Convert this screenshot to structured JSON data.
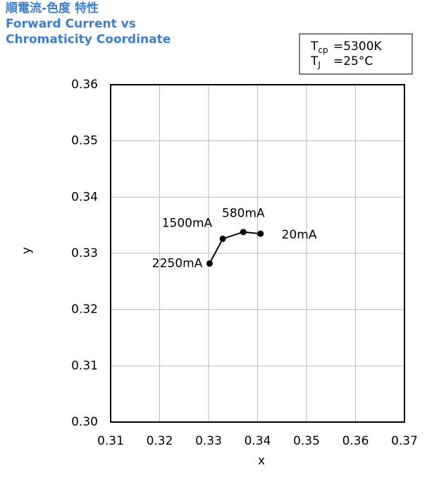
{
  "chart_data": {
    "type": "line",
    "title": [
      "順電流-色度 特性",
      "Forward Current vs",
      "Chromaticity Coordinate"
    ],
    "conditions": [
      {
        "symbol": "T",
        "sub": "cp",
        "text": "=5300K"
      },
      {
        "symbol": "T",
        "sub": "J",
        "text": "=25°C"
      }
    ],
    "x_label": "x",
    "y_label": "y",
    "x": [
      0.3302,
      0.3329,
      0.3371,
      0.3406
    ],
    "values": [
      0.3282,
      0.3326,
      0.3338,
      0.3335
    ],
    "point_labels": [
      "2250mA",
      "1500mA",
      "580mA",
      "20mA"
    ],
    "color": "#000000",
    "xlim": [
      0.31,
      0.37
    ],
    "xticks": [
      0.31,
      0.32,
      0.33,
      0.34,
      0.35,
      0.36,
      0.37
    ],
    "ylim": [
      0.3,
      0.36
    ],
    "yticks": [
      {
        "value": 0.3,
        "label": "0.30"
      },
      0.31,
      0.32,
      0.33,
      0.34,
      0.35,
      0.36
    ],
    "grid": true
  }
}
